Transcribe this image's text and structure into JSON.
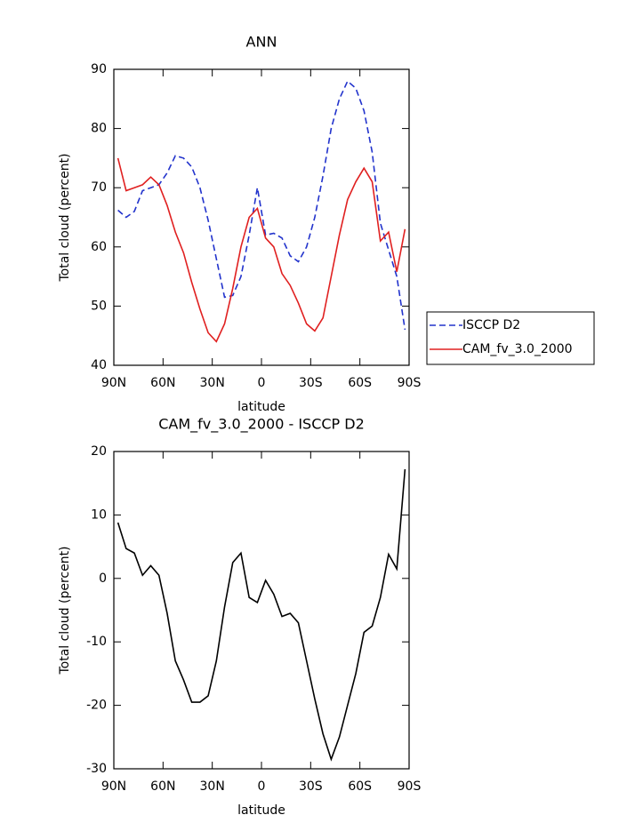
{
  "chart_data": [
    {
      "type": "line",
      "title": "ANN",
      "xlabel": "latitude",
      "ylabel": "Total cloud (percent)",
      "x": [
        87.5,
        82.5,
        77.5,
        72.5,
        67.5,
        62.5,
        57.5,
        52.5,
        47.5,
        42.5,
        37.5,
        32.5,
        27.5,
        22.5,
        17.5,
        12.5,
        7.5,
        2.5,
        -2.5,
        -7.5,
        -12.5,
        -17.5,
        -22.5,
        -27.5,
        -32.5,
        -37.5,
        -42.5,
        -47.5,
        -52.5,
        -57.5,
        -62.5,
        -67.5,
        -72.5,
        -77.5,
        -82.5,
        -87.5
      ],
      "series": [
        {
          "name": "ISCCP D2",
          "color": "#2233cc",
          "dash": true,
          "values": [
            66.2,
            65,
            66,
            69.5,
            70,
            70.5,
            72.5,
            75.4,
            75,
            73.5,
            70,
            64.5,
            58,
            51.5,
            51.8,
            55,
            62,
            70,
            62,
            62.3,
            61.5,
            58.5,
            57.5,
            60,
            65,
            72,
            80,
            85,
            88,
            86.8,
            83,
            76,
            64,
            59.5,
            55,
            46
          ]
        },
        {
          "name": "CAM_fv_3.0_2000",
          "color": "#e02020",
          "dash": false,
          "values": [
            75,
            69.5,
            70,
            70.5,
            71.8,
            70.5,
            67,
            62.5,
            59,
            54,
            49.5,
            45.5,
            44,
            47,
            53,
            60,
            65,
            66.5,
            61.5,
            60,
            55.5,
            53.5,
            50.5,
            47,
            45.8,
            48,
            55,
            62,
            68,
            71,
            73.3,
            71,
            61,
            62.5,
            55.8,
            63
          ]
        }
      ],
      "xlim": [
        90,
        -90
      ],
      "xticks": [
        {
          "value": 90,
          "label": "90N"
        },
        {
          "value": 60,
          "label": "60N"
        },
        {
          "value": 30,
          "label": "30N"
        },
        0,
        {
          "value": -30,
          "label": "30S"
        },
        {
          "value": -60,
          "label": "60S"
        },
        {
          "value": -90,
          "label": "90S"
        }
      ],
      "ylim": [
        40,
        90
      ],
      "yticks": [
        40,
        50,
        60,
        70,
        80,
        90
      ]
    },
    {
      "type": "line",
      "title": "CAM_fv_3.0_2000 - ISCCP D2",
      "xlabel": "latitude",
      "ylabel": "Total cloud (percent)",
      "x": [
        87.5,
        82.5,
        77.5,
        72.5,
        67.5,
        62.5,
        57.5,
        52.5,
        47.5,
        42.5,
        37.5,
        32.5,
        27.5,
        22.5,
        17.5,
        12.5,
        7.5,
        2.5,
        -2.5,
        -7.5,
        -12.5,
        -17.5,
        -22.5,
        -27.5,
        -32.5,
        -37.5,
        -42.5,
        -47.5,
        -52.5,
        -57.5,
        -62.5,
        -67.5,
        -72.5,
        -77.5,
        -82.5,
        -87.5
      ],
      "color": "#000000",
      "values": [
        8.8,
        4.7,
        4,
        0.5,
        2,
        0.5,
        -5.5,
        -13,
        -16,
        -19.5,
        -19.5,
        -18.5,
        -13,
        -4.5,
        2.5,
        4,
        -3,
        -3.8,
        -0.3,
        -2.5,
        -6,
        -5.5,
        -7,
        -13,
        -19,
        -24.5,
        -28.5,
        -25,
        -20,
        -15,
        -8.5,
        -7.5,
        -3,
        3.8,
        1.5,
        17.2
      ],
      "xlim": [
        90,
        -90
      ],
      "xticks": [
        {
          "value": 90,
          "label": "90N"
        },
        {
          "value": 60,
          "label": "60N"
        },
        {
          "value": 30,
          "label": "30N"
        },
        0,
        {
          "value": -30,
          "label": "30S"
        },
        {
          "value": -60,
          "label": "60S"
        },
        {
          "value": -90,
          "label": "90S"
        }
      ],
      "ylim": [
        -30,
        20
      ],
      "yticks": [
        -30,
        -20,
        -10,
        0,
        10,
        20
      ]
    }
  ]
}
